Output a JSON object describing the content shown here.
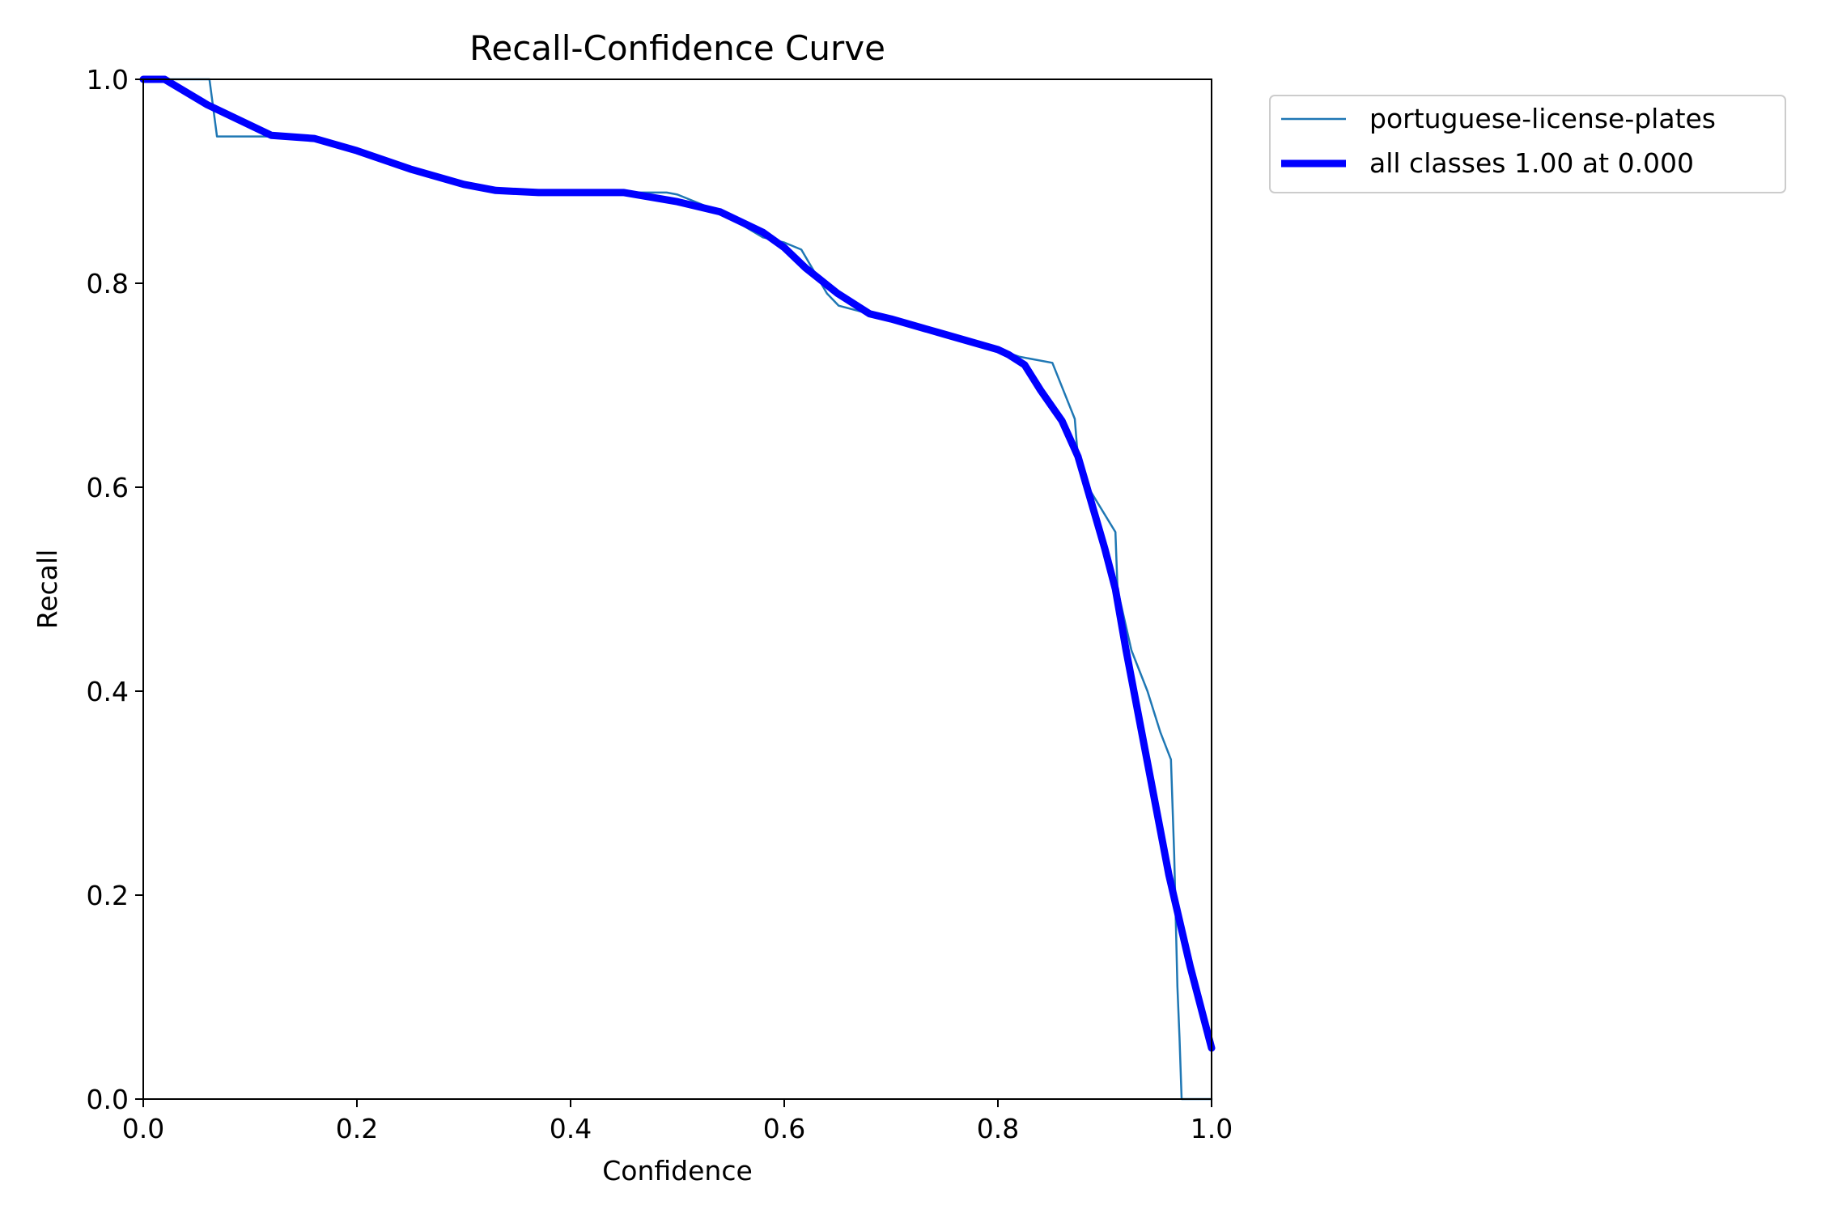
{
  "chart_data": {
    "type": "line",
    "title": "Recall-Confidence Curve",
    "xlabel": "Confidence",
    "ylabel": "Recall",
    "xlim": [
      0,
      1
    ],
    "ylim": [
      0,
      1
    ],
    "xticks": [
      "0.0",
      "0.2",
      "0.4",
      "0.6",
      "0.8",
      "1.0"
    ],
    "yticks": [
      "0.0",
      "0.2",
      "0.4",
      "0.6",
      "0.8",
      "1.0"
    ],
    "grid": false,
    "legend_position": "outside top-right",
    "series": [
      {
        "name": "portuguese-license-plates",
        "color": "#1f77b4",
        "x": [
          0.0,
          0.062,
          0.069,
          0.12,
          0.16,
          0.2,
          0.25,
          0.3,
          0.33,
          0.37,
          0.4,
          0.45,
          0.49,
          0.5,
          0.54,
          0.58,
          0.6,
          0.616,
          0.64,
          0.651,
          0.68,
          0.72,
          0.76,
          0.8,
          0.82,
          0.851,
          0.872,
          0.874,
          0.878,
          0.91,
          0.912,
          0.925,
          0.94,
          0.952,
          0.962,
          0.965,
          0.968,
          0.97,
          0.972,
          0.98,
          1.0
        ],
        "y": [
          1.0,
          1.0,
          0.944,
          0.944,
          0.94,
          0.93,
          0.91,
          0.895,
          0.889,
          0.889,
          0.889,
          0.889,
          0.889,
          0.887,
          0.87,
          0.845,
          0.84,
          0.833,
          0.79,
          0.778,
          0.77,
          0.76,
          0.745,
          0.735,
          0.728,
          0.722,
          0.667,
          0.64,
          0.611,
          0.556,
          0.5,
          0.44,
          0.4,
          0.36,
          0.333,
          0.24,
          0.11,
          0.06,
          0.0,
          0.0,
          0.0
        ]
      },
      {
        "name": "all classes 1.00 at 0.000",
        "color": "#0000ff",
        "x": [
          0.0,
          0.02,
          0.06,
          0.12,
          0.16,
          0.2,
          0.25,
          0.3,
          0.33,
          0.37,
          0.4,
          0.45,
          0.5,
          0.54,
          0.58,
          0.6,
          0.62,
          0.65,
          0.68,
          0.7,
          0.75,
          0.8,
          0.81,
          0.825,
          0.84,
          0.86,
          0.875,
          0.9,
          0.91,
          0.92,
          0.94,
          0.96,
          0.98,
          1.0
        ],
        "y": [
          1.0,
          1.0,
          0.975,
          0.945,
          0.942,
          0.93,
          0.912,
          0.897,
          0.891,
          0.889,
          0.889,
          0.889,
          0.88,
          0.87,
          0.85,
          0.835,
          0.815,
          0.79,
          0.77,
          0.765,
          0.75,
          0.735,
          0.73,
          0.72,
          0.695,
          0.665,
          0.63,
          0.54,
          0.5,
          0.44,
          0.33,
          0.22,
          0.13,
          0.05
        ]
      }
    ]
  }
}
